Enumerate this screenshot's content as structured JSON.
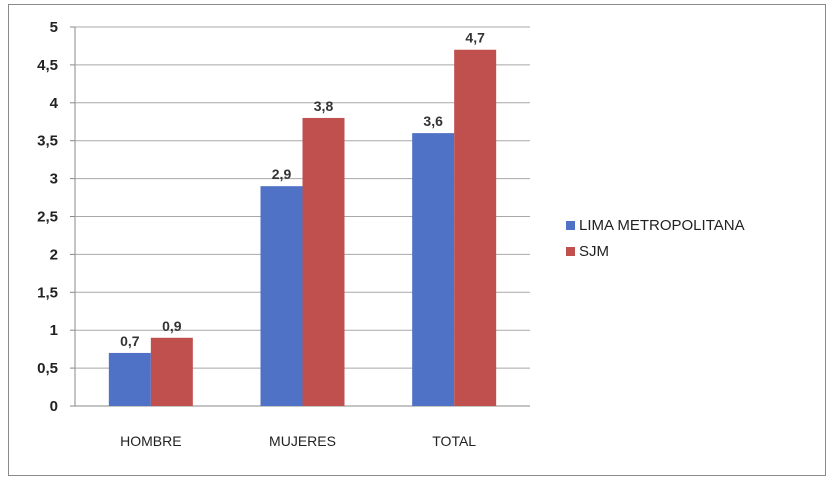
{
  "chart_data": {
    "type": "bar",
    "categories": [
      "HOMBRE",
      "MUJERES",
      "TOTAL"
    ],
    "series": [
      {
        "name": "LIMA METROPOLITANA",
        "values": [
          0.7,
          2.9,
          3.6
        ],
        "labels": [
          "0,7",
          "2,9",
          "3,6"
        ],
        "color": "#4f72c6"
      },
      {
        "name": "SJM",
        "values": [
          0.9,
          3.8,
          4.7
        ],
        "labels": [
          "0,9",
          "3,8",
          "4,7"
        ],
        "color": "#c0504d"
      }
    ],
    "yticks": [
      0,
      0.5,
      1,
      1.5,
      2,
      2.5,
      3,
      3.5,
      4,
      4.5,
      5
    ],
    "ytick_labels": [
      "0",
      "0,5",
      "1",
      "1,5",
      "2",
      "2,5",
      "3",
      "3,5",
      "4",
      "4,5",
      "5"
    ],
    "ylim": [
      0,
      5
    ],
    "grid": true,
    "legend_position": "right",
    "title": "",
    "xlabel": "",
    "ylabel": ""
  }
}
